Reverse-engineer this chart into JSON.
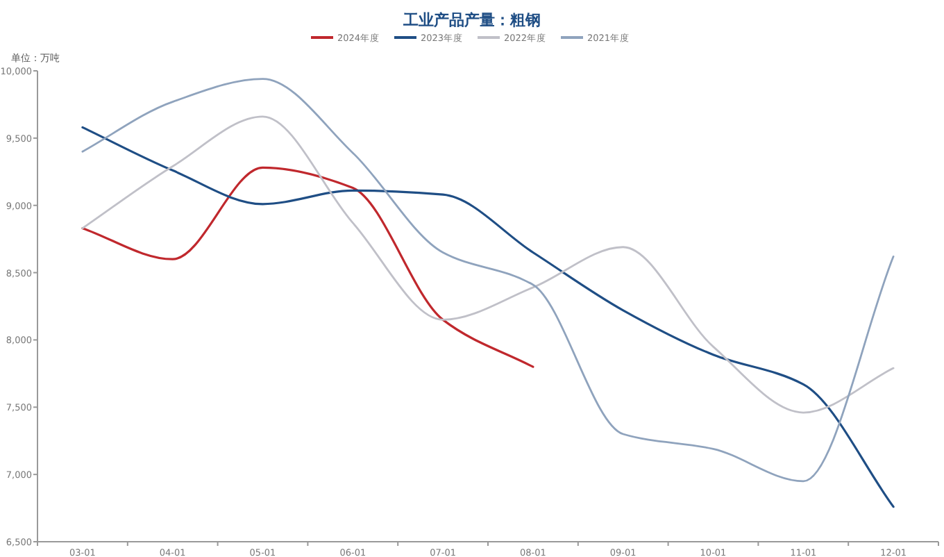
{
  "chart_data": {
    "type": "line",
    "title": "工业产品产量：粗钢",
    "ylabel": "单位：万吨",
    "legend": "top",
    "grid": false,
    "marker": "none",
    "categories": [
      "03-01",
      "04-01",
      "05-01",
      "06-01",
      "07-01",
      "08-01",
      "09-01",
      "10-01",
      "11-01",
      "12-01"
    ],
    "ylim": [
      6500,
      10000
    ],
    "yticks": [
      {
        "value": 6500,
        "label": "6,500"
      },
      {
        "value": 7000,
        "label": "7,000"
      },
      {
        "value": 7500,
        "label": "7,500"
      },
      {
        "value": 8000,
        "label": "8,000"
      },
      {
        "value": 8500,
        "label": "8,500"
      },
      {
        "value": 9000,
        "label": "9,000"
      },
      {
        "value": 9500,
        "label": "9,500"
      },
      {
        "value": 10000,
        "label": "10,000"
      }
    ],
    "series": [
      {
        "name": "2024年度",
        "color": "#c0282d",
        "values": [
          8830,
          8600,
          9280,
          9130,
          8150,
          7800,
          null,
          null,
          null,
          null
        ]
      },
      {
        "name": "2023年度",
        "color": "#1f4e85",
        "values": [
          9580,
          9260,
          9010,
          9110,
          9080,
          8650,
          8220,
          7890,
          7670,
          6760
        ]
      },
      {
        "name": "2022年度",
        "color": "#c0c0c8",
        "values": [
          8830,
          9290,
          9660,
          8870,
          8150,
          8390,
          8690,
          7950,
          7460,
          7790
        ]
      },
      {
        "name": "2021年度",
        "color": "#8fa3bd",
        "values": [
          9400,
          9770,
          9940,
          9390,
          8650,
          8410,
          7300,
          7190,
          6950,
          8620
        ]
      }
    ]
  }
}
